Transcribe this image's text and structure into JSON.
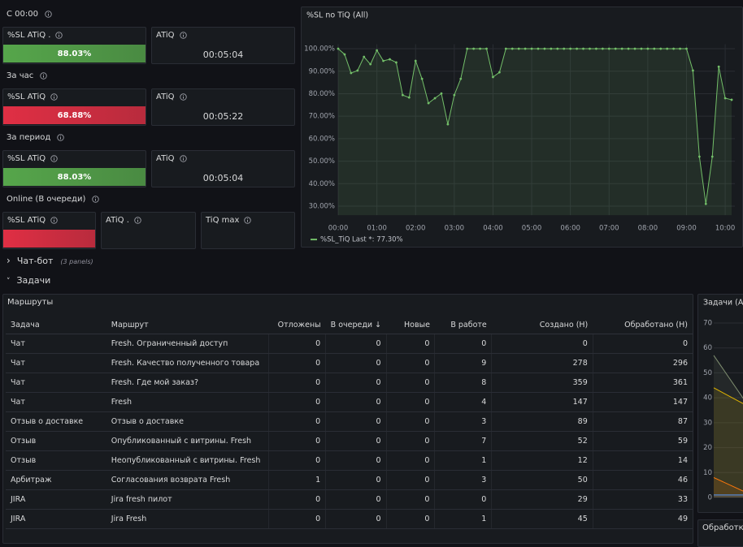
{
  "stats": {
    "groups": [
      {
        "label": "С 00:00",
        "panels": [
          {
            "title": "%SL ATiQ .",
            "value": "88.03%",
            "color": "#56a64b"
          },
          {
            "title": "ATiQ",
            "value": "00:05:04"
          }
        ]
      },
      {
        "label": "За час",
        "panels": [
          {
            "title": "%SL ATiQ",
            "value": "68.88%",
            "color": "#e02f44"
          },
          {
            "title": "ATiQ",
            "value": "00:05:22"
          }
        ]
      },
      {
        "label": "За период",
        "panels": [
          {
            "title": "%SL ATiQ",
            "value": "88.03%",
            "color": "#56a64b"
          },
          {
            "title": "ATiQ",
            "value": "00:05:04"
          }
        ]
      },
      {
        "label": "Online (В очереди)",
        "panels": [
          {
            "title": "%SL ATiQ",
            "color": "#e02f44"
          },
          {
            "title": "ATiQ ."
          },
          {
            "title": "TiQ max"
          }
        ]
      }
    ]
  },
  "chart_data": [
    {
      "type": "line",
      "title": "%SL no TiQ (All)",
      "x": [
        0,
        10,
        20,
        30,
        40,
        50,
        60,
        70,
        80,
        90,
        100,
        110,
        120,
        130,
        140,
        150,
        160,
        170,
        180,
        190,
        200,
        210,
        220,
        230,
        240,
        250,
        260,
        270,
        280,
        290,
        300,
        310,
        320,
        330,
        340,
        350,
        360,
        370,
        380,
        390,
        400,
        410,
        420,
        430,
        440,
        450,
        460,
        470,
        480,
        490,
        500,
        510,
        520,
        530,
        540,
        550,
        560,
        570,
        580,
        590,
        600,
        610
      ],
      "series": [
        {
          "name": "%SL_TiQ",
          "color": "#73bf69",
          "values": [
            100,
            97.5,
            89.2,
            90.3,
            96.4,
            93.1,
            99.3,
            94.6,
            95.3,
            93.9,
            79.4,
            78.3,
            94.6,
            86.6,
            75.8,
            78,
            80.1,
            66.4,
            79.4,
            86.6,
            100,
            100,
            100,
            100,
            87.4,
            89.5,
            100,
            100,
            100,
            100,
            100,
            100,
            100,
            100,
            100,
            100,
            100,
            100,
            100,
            100,
            100,
            100,
            100,
            100,
            100,
            100,
            100,
            100,
            100,
            100,
            100,
            100,
            100,
            100,
            100,
            90.3,
            52,
            31,
            52,
            92,
            78,
            77.3
          ],
          "legend_stat": "Last *: 77.30%"
        }
      ],
      "xlim": [
        0,
        615
      ],
      "xticks": [
        {
          "value": 0,
          "label": "00:00"
        },
        {
          "value": 60,
          "label": "01:00"
        },
        {
          "value": 120,
          "label": "02:00"
        },
        {
          "value": 180,
          "label": "03:00"
        },
        {
          "value": 240,
          "label": "04:00"
        },
        {
          "value": 300,
          "label": "05:00"
        },
        {
          "value": 360,
          "label": "06:00"
        },
        {
          "value": 420,
          "label": "07:00"
        },
        {
          "value": 480,
          "label": "08:00"
        },
        {
          "value": 540,
          "label": "09:00"
        },
        {
          "value": 600,
          "label": "10:00"
        }
      ],
      "ylim": [
        26,
        102
      ],
      "yticks": [
        {
          "value": 30,
          "label": "30.00%"
        },
        {
          "value": 40,
          "label": "40.00%"
        },
        {
          "value": 50,
          "label": "50.00%"
        },
        {
          "value": 60,
          "label": "60.00%"
        },
        {
          "value": 70,
          "label": "70.00%"
        },
        {
          "value": 80,
          "label": "80.00%"
        },
        {
          "value": 90,
          "label": "90.00%"
        },
        {
          "value": 100,
          "label": "100.00%"
        }
      ],
      "grid": true
    },
    {
      "type": "line",
      "title": "Задачи (All)",
      "categories": [
        null,
        null
      ],
      "series": [
        {
          "color": "#7f8e70",
          "values": [
            57,
            38
          ]
        },
        {
          "color": "#e0b400",
          "values": [
            44,
            37
          ]
        },
        {
          "color": "#ff780a",
          "values": [
            8,
            2
          ]
        },
        {
          "color": "#5794f2",
          "values": [
            1,
            1
          ]
        }
      ],
      "ylim": [
        0,
        70
      ],
      "yticks": [
        0,
        10,
        20,
        30,
        40,
        50,
        60,
        70
      ],
      "grid": true
    }
  ],
  "rows": {
    "collapsed": {
      "title": "Чат-бот",
      "note": "(3 panels)"
    },
    "expanded": {
      "title": "Задачи"
    }
  },
  "table": {
    "title": "Маршруты",
    "columns": [
      "Задача",
      "Маршрут",
      "Отложены",
      "В очереди",
      "Новые",
      "В работе",
      "Создано (Н)",
      "Обработано (Н)"
    ],
    "rows": [
      [
        "Чат",
        "Fresh. Ограниченный доступ",
        0,
        0,
        0,
        0,
        0,
        0
      ],
      [
        "Чат",
        "Fresh. Качество полученного товара",
        0,
        0,
        0,
        9,
        278,
        296
      ],
      [
        "Чат",
        "Fresh. Где мой заказ?",
        0,
        0,
        0,
        8,
        359,
        361
      ],
      [
        "Чат",
        "Fresh",
        0,
        0,
        0,
        4,
        147,
        147
      ],
      [
        "Отзыв о доставке",
        "Отзыв о доставке",
        0,
        0,
        0,
        3,
        89,
        87
      ],
      [
        "Отзыв",
        "Опубликованный с витрины. Fresh",
        0,
        0,
        0,
        7,
        52,
        59
      ],
      [
        "Отзыв",
        "Неопубликованный с витрины. Fresh",
        0,
        0,
        0,
        1,
        12,
        14
      ],
      [
        "Арбитраж",
        "Согласования возврата Fresh",
        1,
        0,
        0,
        3,
        50,
        46
      ],
      [
        "JIRA",
        "Jira fresh пилот",
        0,
        0,
        0,
        0,
        29,
        33
      ],
      [
        "JIRA",
        "Jira Fresh",
        0,
        0,
        0,
        1,
        45,
        49
      ]
    ]
  },
  "side_panel": {
    "title": "Обработка"
  }
}
